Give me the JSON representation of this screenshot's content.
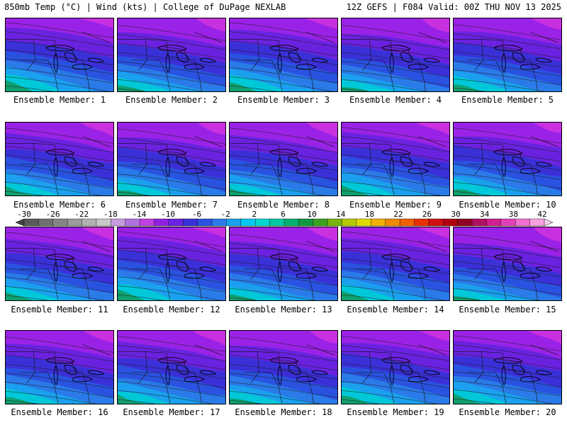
{
  "header": {
    "left": "850mb Temp (°C) | Wind (kts) | College of DuPage NEXLAB",
    "right": "12Z GEFS | F084 Valid: 00Z THU NOV 13 2025"
  },
  "panels": [
    {
      "label": "Ensemble Member: 1"
    },
    {
      "label": "Ensemble Member: 2"
    },
    {
      "label": "Ensemble Member: 3"
    },
    {
      "label": "Ensemble Member: 4"
    },
    {
      "label": "Ensemble Member: 5"
    },
    {
      "label": "Ensemble Member: 6"
    },
    {
      "label": "Ensemble Member: 7"
    },
    {
      "label": "Ensemble Member: 8"
    },
    {
      "label": "Ensemble Member: 9"
    },
    {
      "label": "Ensemble Member: 10"
    },
    {
      "label": "Ensemble Member: 11"
    },
    {
      "label": "Ensemble Member: 12"
    },
    {
      "label": "Ensemble Member: 13"
    },
    {
      "label": "Ensemble Member: 14"
    },
    {
      "label": "Ensemble Member: 15"
    },
    {
      "label": "Ensemble Member: 16"
    },
    {
      "label": "Ensemble Member: 17"
    },
    {
      "label": "Ensemble Member: 18"
    },
    {
      "label": "Ensemble Member: 19"
    },
    {
      "label": "Ensemble Member: 20"
    }
  ],
  "colorbar": {
    "labels": [
      "-30",
      "-26",
      "-22",
      "-18",
      "-14",
      "-10",
      "-6",
      "-2",
      "2",
      "6",
      "10",
      "14",
      "18",
      "22",
      "26",
      "30",
      "34",
      "38",
      "42"
    ],
    "colors": [
      "#5a5a5a",
      "#707070",
      "#868686",
      "#9c9c9c",
      "#b2b2b2",
      "#c8c8c8",
      "#c89ae0",
      "#b070e0",
      "#c040e0",
      "#9020e0",
      "#6a22e0",
      "#3a30d8",
      "#2a52e0",
      "#2a7ae8",
      "#1aa0ee",
      "#00c8f0",
      "#00d8d0",
      "#00c8a0",
      "#00b070",
      "#109a40",
      "#3aa020",
      "#7ab410",
      "#b8c800",
      "#e0d800",
      "#f0b000",
      "#f08800",
      "#f06000",
      "#e83000",
      "#d01010",
      "#b00010",
      "#900020",
      "#b01060",
      "#d02090",
      "#e040b8",
      "#f070d0",
      "#f8a0e0"
    ]
  }
}
